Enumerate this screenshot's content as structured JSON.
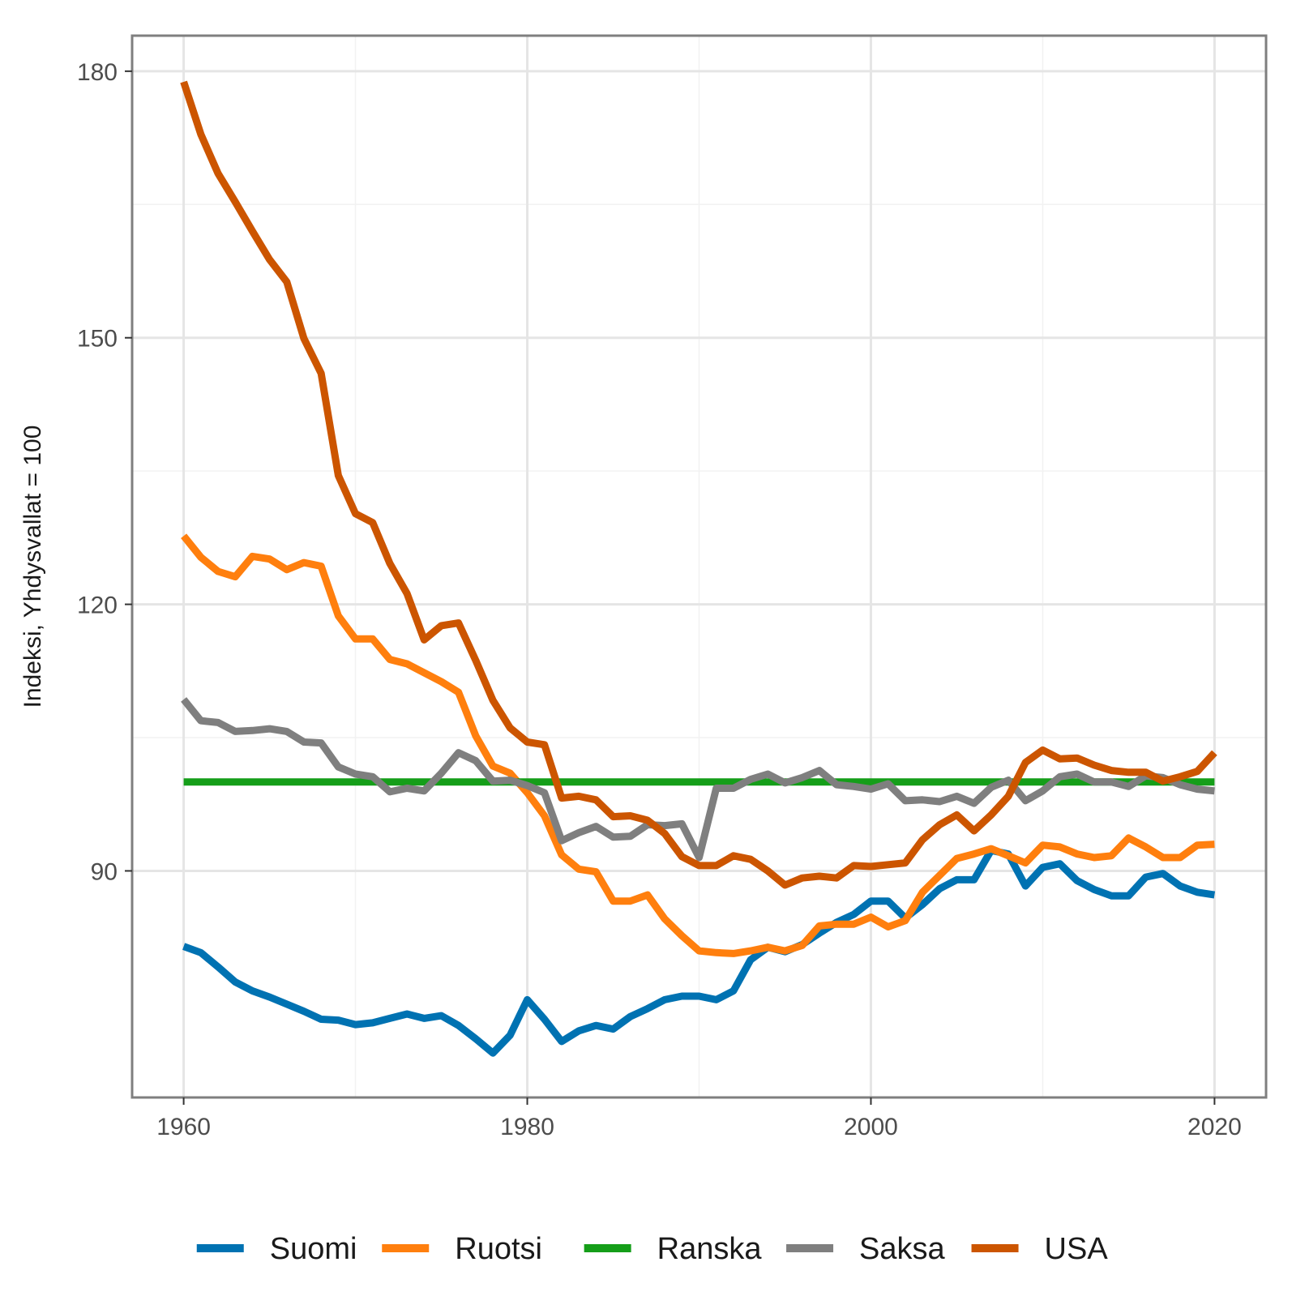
{
  "chart_data": {
    "type": "line",
    "title": "",
    "xlabel": "",
    "ylabel": "Indeksi, Yhdysvallat = 100",
    "xlim": [
      1957,
      1963.0
    ],
    "ylim": [
      64.5,
      184
    ],
    "x_ticks": [
      1960,
      1980,
      2000,
      2020
    ],
    "x_tick_labels": [
      "1960",
      "1980",
      "2000",
      "2020"
    ],
    "y_ticks": [
      90,
      120,
      150,
      180
    ],
    "y_tick_labels": [
      "90",
      "120",
      "150",
      "180"
    ],
    "grid": true,
    "legend_position": "bottom",
    "x": [
      1960,
      1961,
      1962,
      1963,
      1964,
      1965,
      1966,
      1967,
      1968,
      1969,
      1970,
      1971,
      1972,
      1973,
      1974,
      1975,
      1976,
      1977,
      1978,
      1979,
      1980,
      1981,
      1982,
      1983,
      1984,
      1985,
      1986,
      1987,
      1988,
      1989,
      1990,
      1991,
      1992,
      1993,
      1994,
      1995,
      1996,
      1997,
      1998,
      1999,
      2000,
      2001,
      2002,
      2003,
      2004,
      2005,
      2006,
      2007,
      2008,
      2009,
      2010,
      2011,
      2012,
      2013,
      2014,
      2015,
      2016,
      2017,
      2018,
      2019,
      2020
    ],
    "series": [
      {
        "name": "Suomi",
        "color": "#0072B2",
        "values": [
          81.5,
          80.8,
          79.2,
          77.5,
          76.5,
          75.8,
          75.0,
          74.2,
          73.3,
          73.2,
          72.7,
          72.9,
          73.4,
          73.9,
          73.4,
          73.7,
          72.6,
          71.1,
          69.5,
          71.5,
          75.5,
          73.3,
          70.8,
          72.0,
          72.6,
          72.2,
          73.6,
          74.5,
          75.5,
          75.9,
          75.9,
          75.5,
          76.5,
          80.0,
          81.4,
          80.9,
          81.7,
          83.0,
          84.2,
          85.1,
          86.6,
          86.6,
          84.7,
          86.2,
          88.0,
          89.0,
          89.0,
          92.3,
          91.9,
          88.3,
          90.4,
          90.8,
          88.9,
          87.9,
          87.2,
          87.2,
          89.3,
          89.7,
          88.3,
          87.6,
          87.3
        ]
      },
      {
        "name": "Ruotsi",
        "color": "#FF7F0E",
        "values": [
          127.7,
          125.3,
          123.7,
          123.1,
          125.4,
          125.1,
          123.9,
          124.7,
          124.3,
          118.7,
          116.1,
          116.1,
          113.8,
          113.3,
          112.3,
          111.3,
          110.1,
          105.2,
          101.8,
          101.0,
          98.8,
          96.2,
          91.8,
          90.2,
          89.9,
          86.6,
          86.6,
          87.3,
          84.6,
          82.7,
          81.0,
          80.8,
          80.7,
          81.0,
          81.4,
          81.0,
          81.6,
          83.8,
          84.0,
          84.0,
          84.8,
          83.7,
          84.4,
          87.6,
          89.5,
          91.4,
          91.9,
          92.5,
          91.7,
          90.9,
          92.9,
          92.7,
          91.9,
          91.5,
          91.7,
          93.7,
          92.7,
          91.5,
          91.5,
          92.9,
          93.0
        ]
      },
      {
        "name": "Ranska",
        "color": "#159E19",
        "values": [
          100,
          100,
          100,
          100,
          100,
          100,
          100,
          100,
          100,
          100,
          100,
          100,
          100,
          100,
          100,
          100,
          100,
          100,
          100,
          100,
          100,
          100,
          100,
          100,
          100,
          100,
          100,
          100,
          100,
          100,
          100,
          100,
          100,
          100,
          100,
          100,
          100,
          100,
          100,
          100,
          100,
          100,
          100,
          100,
          100,
          100,
          100,
          100,
          100,
          100,
          100,
          100,
          100,
          100,
          100,
          100,
          100,
          100,
          100,
          100,
          100
        ]
      },
      {
        "name": "Saksa",
        "color": "#7F7F7F",
        "values": [
          109.3,
          106.9,
          106.7,
          105.7,
          105.8,
          106.0,
          105.7,
          104.5,
          104.4,
          101.7,
          100.9,
          100.6,
          98.9,
          99.3,
          99.0,
          101.0,
          103.3,
          102.4,
          100.1,
          100.2,
          99.6,
          98.8,
          93.4,
          94.3,
          95.0,
          93.8,
          93.9,
          95.2,
          95.1,
          95.3,
          91.5,
          99.3,
          99.3,
          100.3,
          100.9,
          99.9,
          100.5,
          101.3,
          99.7,
          99.5,
          99.2,
          99.8,
          97.9,
          98.0,
          97.8,
          98.4,
          97.6,
          99.4,
          100.2,
          97.9,
          99.0,
          100.6,
          100.9,
          100.0,
          100.0,
          99.5,
          100.7,
          100.5,
          99.7,
          99.2,
          99.0
        ]
      },
      {
        "name": "USA",
        "color": "#CC5500",
        "values": [
          178.8,
          172.9,
          168.5,
          165.3,
          162.0,
          158.8,
          156.3,
          149.9,
          146.0,
          134.5,
          130.2,
          129.2,
          124.6,
          121.2,
          116.0,
          117.6,
          117.9,
          113.7,
          109.2,
          106.1,
          104.5,
          104.2,
          98.2,
          98.4,
          98.0,
          96.1,
          96.2,
          95.7,
          94.2,
          91.6,
          90.6,
          90.6,
          91.7,
          91.3,
          90.0,
          88.4,
          89.2,
          89.4,
          89.2,
          90.6,
          90.5,
          90.7,
          90.9,
          93.5,
          95.2,
          96.3,
          94.5,
          96.3,
          98.4,
          102.2,
          103.6,
          102.6,
          102.7,
          101.9,
          101.3,
          101.1,
          101.1,
          100.1,
          100.6,
          101.2,
          103.3
        ]
      }
    ]
  }
}
